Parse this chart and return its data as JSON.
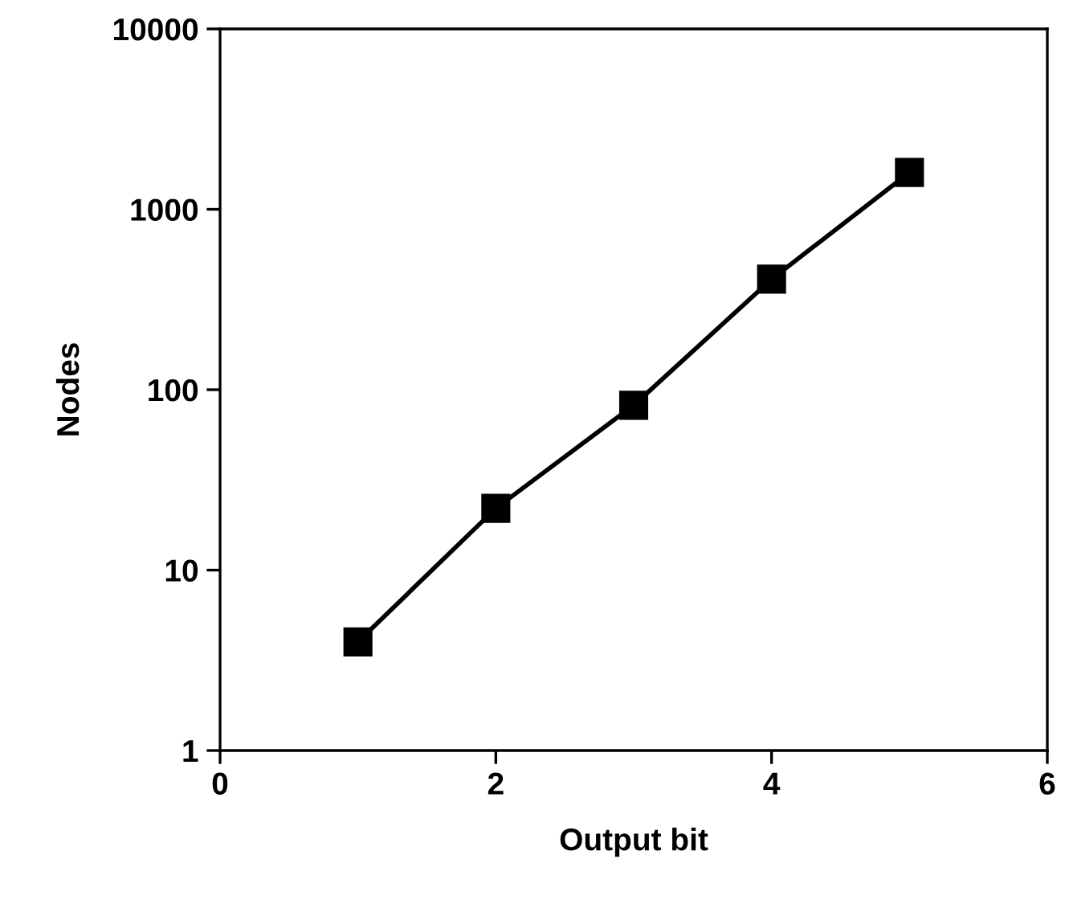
{
  "chart_data": {
    "type": "line",
    "xlabel": "Output bit",
    "ylabel": "Nodes",
    "x": [
      1,
      2,
      3,
      4,
      5
    ],
    "values": [
      4,
      22,
      82,
      410,
      1600
    ],
    "color": "#000000",
    "marker": "square",
    "line_style": "solid",
    "log": "y",
    "xlim": [
      0,
      6
    ],
    "xticks": [
      0,
      2,
      4,
      6
    ],
    "ylim": [
      1,
      10000
    ],
    "yticks": [
      1,
      10,
      100,
      1000,
      10000
    ],
    "grid": false
  }
}
